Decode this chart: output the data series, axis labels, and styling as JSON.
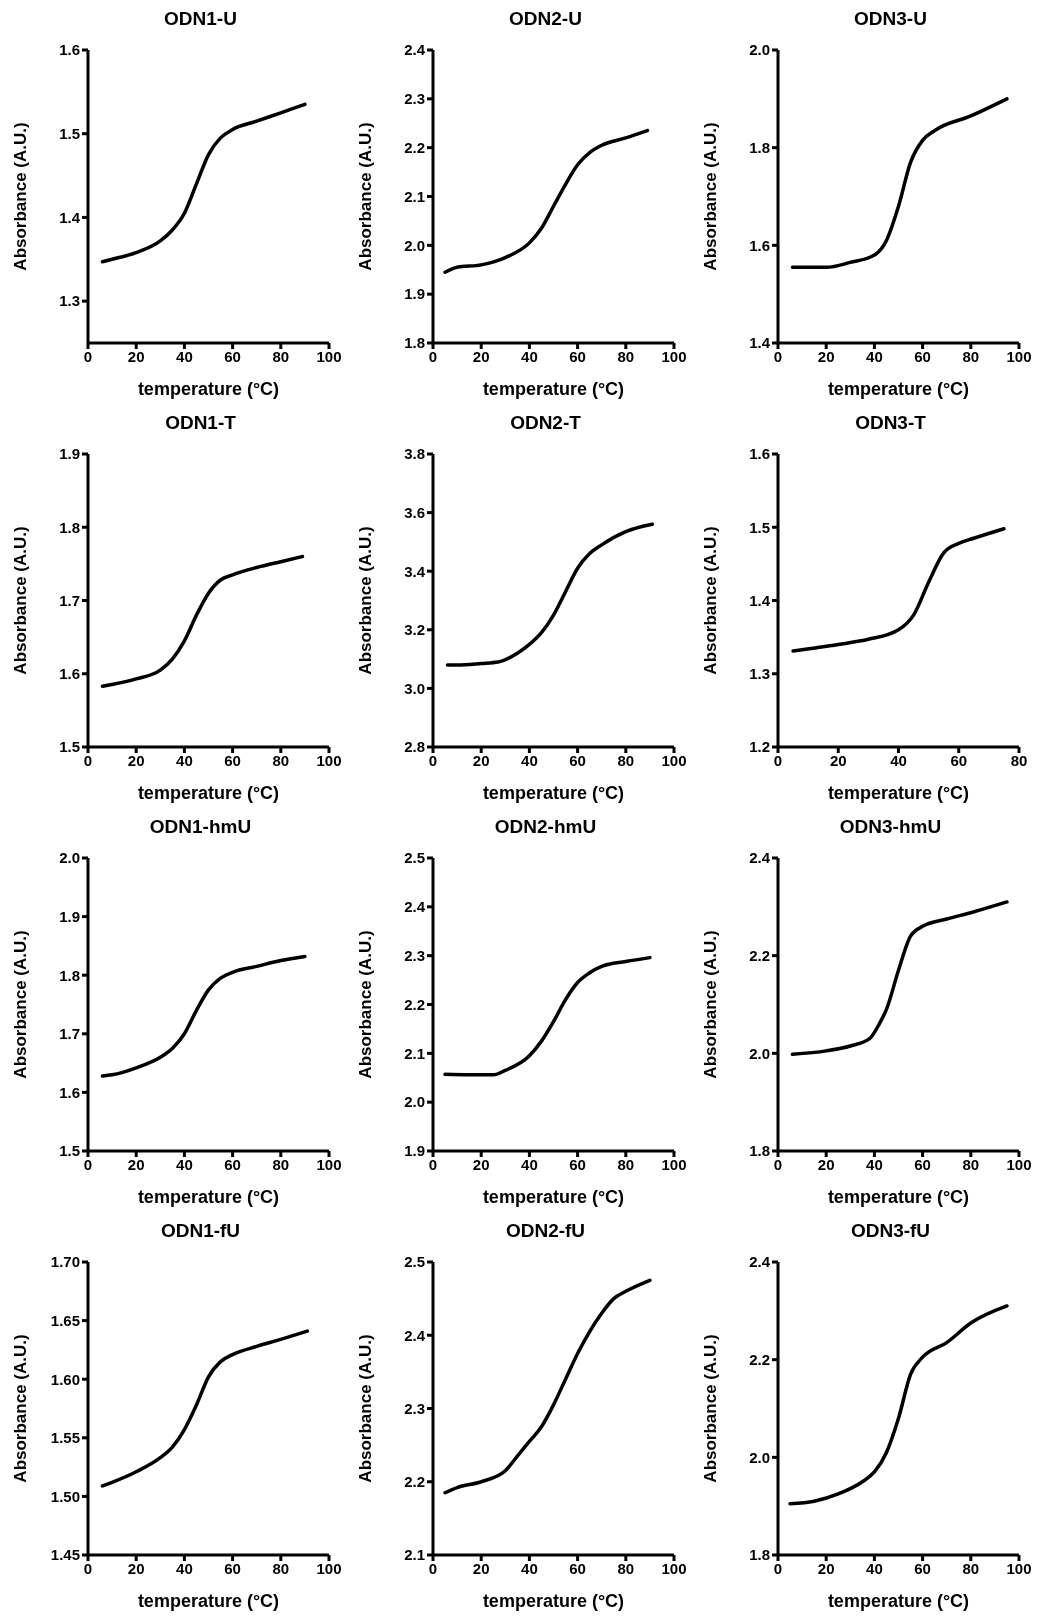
{
  "chart_data": [
    {
      "type": "line",
      "title": "ODN1-U",
      "xlabel": "temperature (°C)",
      "ylabel": "Absorbance (A.U.)",
      "color": "#000000",
      "xlim": [
        0,
        100
      ],
      "xticks": [
        0,
        20,
        40,
        60,
        80,
        100
      ],
      "ylim": [
        1.25,
        1.6
      ],
      "yticks": [
        1.3,
        1.4,
        1.5,
        1.6
      ],
      "x": [
        6,
        10,
        20,
        30,
        35,
        40,
        45,
        50,
        55,
        60,
        70,
        80,
        90
      ],
      "values": [
        1.347,
        1.35,
        1.358,
        1.372,
        1.385,
        1.405,
        1.44,
        1.475,
        1.495,
        1.505,
        1.515,
        1.525,
        1.535
      ]
    },
    {
      "type": "line",
      "title": "ODN2-U",
      "xlabel": "temperature (°C)",
      "ylabel": "Absorbance (A.U.)",
      "color": "#000000",
      "xlim": [
        0,
        100
      ],
      "xticks": [
        0,
        20,
        40,
        60,
        80,
        100
      ],
      "ylim": [
        1.8,
        2.4
      ],
      "yticks": [
        1.8,
        1.9,
        {
          "value": 2.0,
          "label": "2.0"
        },
        2.1,
        2.2,
        2.3,
        2.4
      ],
      "x": [
        5,
        10,
        20,
        30,
        40,
        45,
        50,
        55,
        60,
        65,
        70,
        80,
        89
      ],
      "values": [
        1.945,
        1.955,
        1.96,
        1.975,
        2.005,
        2.035,
        2.08,
        2.125,
        2.165,
        2.19,
        2.205,
        2.22,
        2.235
      ]
    },
    {
      "type": "line",
      "title": "ODN3-U",
      "xlabel": "temperature (°C)",
      "ylabel": "Absorbance (A.U.)",
      "color": "#000000",
      "xlim": [
        0,
        100
      ],
      "xticks": [
        0,
        20,
        40,
        60,
        80,
        100
      ],
      "ylim": [
        1.4,
        2.0
      ],
      "yticks": [
        1.4,
        1.6,
        1.8,
        {
          "value": 2.0,
          "label": "2.0"
        }
      ],
      "x": [
        6,
        20,
        30,
        40,
        45,
        50,
        55,
        60,
        65,
        80,
        95
      ],
      "values": [
        1.555,
        1.555,
        1.565,
        1.58,
        1.61,
        1.68,
        1.77,
        1.815,
        1.835,
        1.865,
        1.9
      ]
    },
    {
      "type": "line",
      "title": "ODN1-T",
      "xlabel": "temperature (°C)",
      "ylabel": "Absorbance (A.U.)",
      "color": "#000000",
      "xlim": [
        0,
        100
      ],
      "xticks": [
        0,
        20,
        40,
        60,
        80,
        100
      ],
      "ylim": [
        1.5,
        1.9
      ],
      "yticks": [
        1.5,
        1.6,
        1.7,
        1.8,
        1.9
      ],
      "x": [
        6,
        20,
        30,
        35,
        40,
        45,
        50,
        55,
        60,
        70,
        80,
        89
      ],
      "values": [
        1.583,
        1.593,
        1.605,
        1.62,
        1.645,
        1.68,
        1.71,
        1.728,
        1.735,
        1.745,
        1.753,
        1.76
      ]
    },
    {
      "type": "line",
      "title": "ODN2-T",
      "xlabel": "temperature (°C)",
      "ylabel": "Absorbance (A.U.)",
      "color": "#000000",
      "xlim": [
        0,
        100
      ],
      "xticks": [
        0,
        20,
        40,
        60,
        80,
        100
      ],
      "ylim": [
        2.8,
        3.8
      ],
      "yticks": [
        2.8,
        {
          "value": 3.0,
          "label": "3.0"
        },
        3.2,
        3.4,
        3.6,
        3.8
      ],
      "x": [
        6,
        10,
        20,
        27,
        35,
        40,
        45,
        50,
        55,
        60,
        65,
        70,
        80,
        91
      ],
      "values": [
        3.08,
        3.08,
        3.085,
        3.09,
        3.12,
        3.15,
        3.19,
        3.25,
        3.33,
        3.41,
        3.46,
        3.49,
        3.535,
        3.56
      ]
    },
    {
      "type": "line",
      "title": "ODN3-T",
      "xlabel": "temperature (°C)",
      "ylabel": "Absorbance (A.U.)",
      "color": "#000000",
      "xlim": [
        0,
        80
      ],
      "xticks": [
        0,
        20,
        40,
        60,
        80
      ],
      "ylim": [
        1.2,
        1.6
      ],
      "yticks": [
        1.2,
        1.3,
        1.4,
        1.5,
        1.6
      ],
      "x": [
        5,
        20,
        30,
        40,
        45,
        50,
        55,
        60,
        65,
        75
      ],
      "values": [
        1.331,
        1.34,
        1.347,
        1.36,
        1.38,
        1.425,
        1.465,
        1.478,
        1.485,
        1.498
      ]
    },
    {
      "type": "line",
      "title": "ODN1-hmU",
      "xlabel": "temperature (°C)",
      "ylabel": "Absorbance (A.U.)",
      "color": "#000000",
      "xlim": [
        0,
        100
      ],
      "xticks": [
        0,
        20,
        40,
        60,
        80,
        100
      ],
      "ylim": [
        1.5,
        2.0
      ],
      "yticks": [
        1.5,
        1.6,
        1.7,
        1.8,
        1.9,
        {
          "value": 2.0,
          "label": "2.0"
        }
      ],
      "x": [
        6,
        10,
        20,
        30,
        35,
        40,
        45,
        50,
        55,
        60,
        70,
        80,
        90
      ],
      "values": [
        1.628,
        1.63,
        1.642,
        1.66,
        1.675,
        1.7,
        1.74,
        1.775,
        1.795,
        1.805,
        1.815,
        1.825,
        1.832
      ]
    },
    {
      "type": "line",
      "title": "ODN2-hmU",
      "xlabel": "temperature (°C)",
      "ylabel": "Absorbance (A.U.)",
      "color": "#000000",
      "xlim": [
        0,
        100
      ],
      "xticks": [
        0,
        20,
        40,
        60,
        80,
        100
      ],
      "ylim": [
        1.9,
        2.5
      ],
      "yticks": [
        1.9,
        {
          "value": 2.0,
          "label": "2.0"
        },
        2.1,
        2.2,
        2.3,
        2.4,
        2.5
      ],
      "x": [
        5,
        15,
        25,
        30,
        40,
        45,
        50,
        55,
        60,
        65,
        70,
        80,
        90
      ],
      "values": [
        2.057,
        2.056,
        2.056,
        2.065,
        2.095,
        2.125,
        2.165,
        2.21,
        2.245,
        2.265,
        2.278,
        2.288,
        2.296
      ]
    },
    {
      "type": "line",
      "title": "ODN3-hmU",
      "xlabel": "temperature (°C)",
      "ylabel": "Absorbance (A.U.)",
      "color": "#000000",
      "xlim": [
        0,
        100
      ],
      "xticks": [
        0,
        20,
        40,
        60,
        80,
        100
      ],
      "ylim": [
        1.8,
        2.4
      ],
      "yticks": [
        1.8,
        {
          "value": 2.0,
          "label": "2.0"
        },
        2.2,
        2.4
      ],
      "x": [
        6,
        20,
        30,
        38,
        42,
        45,
        50,
        55,
        60,
        70,
        80,
        95
      ],
      "values": [
        1.998,
        2.005,
        2.015,
        2.03,
        2.06,
        2.09,
        2.17,
        2.24,
        2.26,
        2.275,
        2.288,
        2.31
      ]
    },
    {
      "type": "line",
      "title": "ODN1-fU",
      "xlabel": "temperature (°C)",
      "ylabel": "Absorbance (A.U.)",
      "color": "#000000",
      "xlim": [
        0,
        100
      ],
      "xticks": [
        0,
        20,
        40,
        60,
        80,
        100
      ],
      "ylim": [
        1.45,
        1.7
      ],
      "yticks": [
        1.45,
        {
          "value": 1.5,
          "label": "1.50"
        },
        1.55,
        {
          "value": 1.6,
          "label": "1.60"
        },
        1.65,
        {
          "value": 1.7,
          "label": "1.70"
        }
      ],
      "x": [
        6,
        10,
        20,
        30,
        35,
        40,
        45,
        50,
        55,
        60,
        70,
        80,
        91
      ],
      "values": [
        1.509,
        1.512,
        1.521,
        1.533,
        1.542,
        1.557,
        1.578,
        1.602,
        1.615,
        1.621,
        1.628,
        1.634,
        1.641
      ]
    },
    {
      "type": "line",
      "title": "ODN2-fU",
      "xlabel": "temperature (°C)",
      "ylabel": "Absorbance (A.U.)",
      "color": "#000000",
      "xlim": [
        0,
        100
      ],
      "xticks": [
        0,
        20,
        40,
        60,
        80,
        100
      ],
      "ylim": [
        2.1,
        2.5
      ],
      "yticks": [
        2.1,
        2.2,
        2.3,
        2.4,
        2.5
      ],
      "x": [
        5,
        10,
        20,
        30,
        35,
        40,
        45,
        50,
        55,
        60,
        65,
        70,
        75,
        80,
        90
      ],
      "values": [
        2.185,
        2.192,
        2.2,
        2.215,
        2.235,
        2.255,
        2.275,
        2.305,
        2.34,
        2.375,
        2.405,
        2.43,
        2.45,
        2.46,
        2.475
      ]
    },
    {
      "type": "line",
      "title": "ODN3-fU",
      "xlabel": "temperature (°C)",
      "ylabel": "Absorbance (A.U.)",
      "color": "#000000",
      "xlim": [
        0,
        100
      ],
      "xticks": [
        0,
        20,
        40,
        60,
        80,
        100
      ],
      "ylim": [
        1.8,
        2.4
      ],
      "yticks": [
        1.8,
        {
          "value": 2.0,
          "label": "2.0"
        },
        2.2,
        2.4
      ],
      "x": [
        5,
        15,
        25,
        35,
        40,
        45,
        50,
        55,
        60,
        70,
        80,
        95
      ],
      "values": [
        1.905,
        1.91,
        1.925,
        1.95,
        1.97,
        2.01,
        2.08,
        2.17,
        2.205,
        2.235,
        2.275,
        2.31
      ]
    }
  ]
}
